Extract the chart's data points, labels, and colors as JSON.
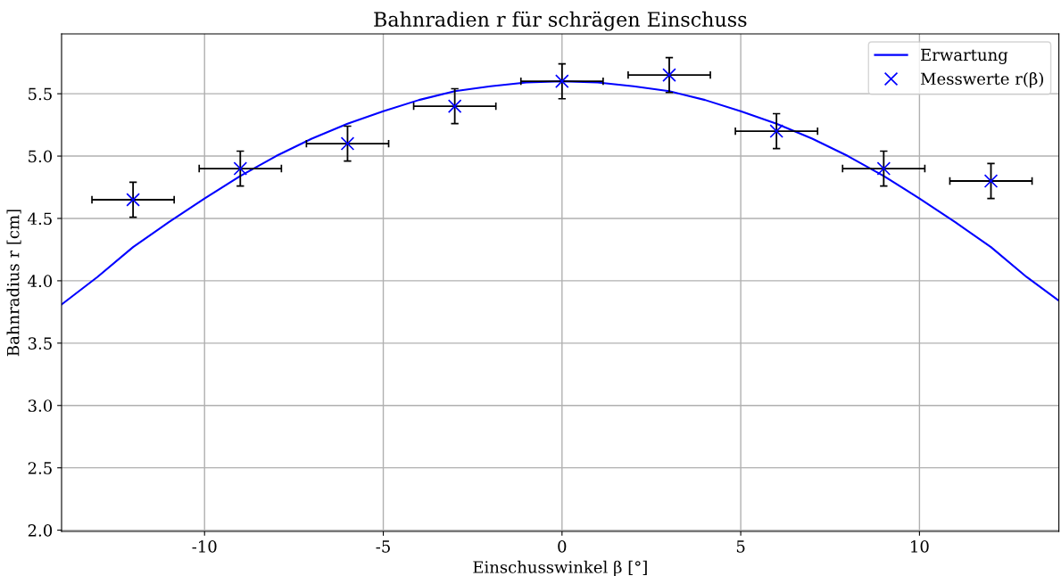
{
  "chart_data": {
    "type": "line",
    "title": "Bahnradien r für schrägen Einschuss",
    "xlabel": "Einschusswinkel β [°]",
    "ylabel": "Bahnradius r [cm]",
    "xlim": [
      -14,
      13.9
    ],
    "ylim": [
      1.99,
      5.98
    ],
    "xticks": [
      -10,
      -5,
      0,
      5,
      10
    ],
    "yticks": [
      {
        "value": 2,
        "label": "2.0"
      },
      2.5,
      {
        "value": 3,
        "label": "3.0"
      },
      3.5,
      {
        "value": 4,
        "label": "4.0"
      },
      4.5,
      {
        "value": 5,
        "label": "5.0"
      },
      5.5
    ],
    "grid": true,
    "legend": "top right",
    "series": [
      {
        "name": "Erwartung",
        "color": "#0000ff",
        "marker": "none",
        "x": [
          -14,
          -13,
          -12,
          -11,
          -10,
          -9,
          -8,
          -7,
          -6,
          -5,
          -4,
          -3,
          -2,
          -1,
          0,
          1,
          2,
          3,
          4,
          5,
          6,
          7,
          8,
          9,
          10,
          11,
          12,
          13,
          13.9
        ],
        "values": [
          3.81,
          4.03,
          4.27,
          4.47,
          4.66,
          4.84,
          5.0,
          5.14,
          5.26,
          5.36,
          5.45,
          5.52,
          5.56,
          5.59,
          5.6,
          5.59,
          5.56,
          5.52,
          5.45,
          5.36,
          5.26,
          5.14,
          5.0,
          4.84,
          4.66,
          4.47,
          4.27,
          4.03,
          3.84
        ]
      },
      {
        "name": "Messwerte r(β)",
        "type": "scatter",
        "color": "#0000ff",
        "marker": "cross",
        "x": [
          -12,
          -9,
          -6,
          -3,
          0,
          3,
          6,
          9,
          12
        ],
        "values": [
          4.65,
          4.9,
          5.1,
          5.4,
          5.6,
          5.65,
          5.2,
          4.9,
          4.8
        ],
        "errors": [
          0.14,
          0.14,
          0.14,
          0.14,
          0.14,
          0.14,
          0.14,
          0.14,
          0.14
        ],
        "xerrors": [
          1.15,
          1.15,
          1.15,
          1.15,
          1.15,
          1.15,
          1.15,
          1.15,
          1.15
        ]
      }
    ]
  }
}
